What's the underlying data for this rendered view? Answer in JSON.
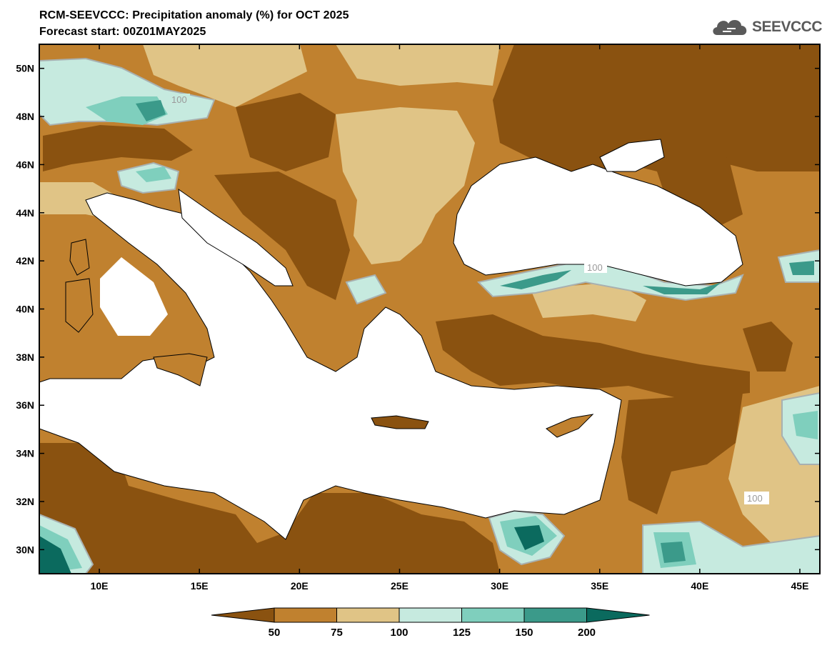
{
  "header": {
    "title": "RCM-SEEVCCC: Precipitation anomaly (%) for OCT 2025",
    "subtitle": "Forecast start: 00Z01MAY2025",
    "logo_text": "SEEVCCC"
  },
  "map": {
    "lon_range": [
      7,
      46
    ],
    "lat_range": [
      29,
      51
    ],
    "lon_ticks": [
      "10E",
      "15E",
      "20E",
      "25E",
      "30E",
      "35E",
      "40E",
      "45E"
    ],
    "lat_ticks": [
      "50N",
      "48N",
      "46N",
      "44N",
      "42N",
      "40N",
      "38N",
      "36N",
      "34N",
      "32N",
      "30N"
    ],
    "contour_labels": [
      "100",
      "100",
      "100"
    ]
  },
  "colorbar": {
    "labels": [
      "50",
      "75",
      "100",
      "125",
      "150",
      "200"
    ],
    "colors": [
      "#8a5210",
      "#c0812f",
      "#e0c486",
      "#c6eadf",
      "#7fcfbd",
      "#3b9a8a",
      "#0b6a5e"
    ]
  },
  "colors": {
    "dry_strong": "#8a5210",
    "dry": "#c0812f",
    "dry_light": "#e0c486",
    "wet_light": "#c6eadf",
    "wet": "#7fcfbd",
    "wet_strong": "#3b9a8a",
    "wet_extreme": "#0b6a5e",
    "contour_100": "#a8b0b0"
  }
}
